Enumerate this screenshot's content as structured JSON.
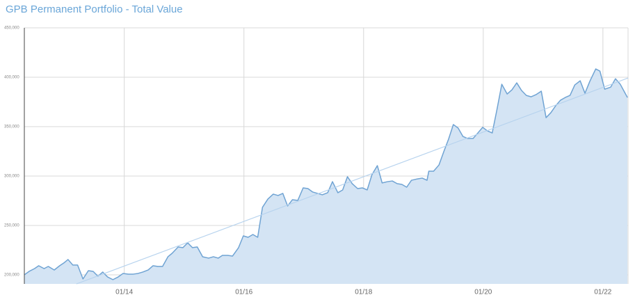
{
  "chart_data": {
    "type": "area",
    "title": "GPB Permanent Portfolio - Total Value",
    "x": [
      2012.33,
      2012.41,
      2012.5,
      2012.57,
      2012.66,
      2012.73,
      2012.83,
      2012.92,
      2012.99,
      2013.06,
      2013.14,
      2013.22,
      2013.31,
      2013.4,
      2013.48,
      2013.56,
      2013.64,
      2013.72,
      2013.81,
      2013.9,
      2013.98,
      2014.07,
      2014.15,
      2014.23,
      2014.31,
      2014.4,
      2014.48,
      2014.56,
      2014.64,
      2014.73,
      2014.8,
      2014.9,
      2014.98,
      2015.06,
      2015.14,
      2015.22,
      2015.31,
      2015.41,
      2015.49,
      2015.57,
      2015.64,
      2015.73,
      2015.81,
      2015.91,
      2015.99,
      2016.07,
      2016.15,
      2016.23,
      2016.31,
      2016.4,
      2016.49,
      2016.57,
      2016.65,
      2016.73,
      2016.81,
      2016.9,
      2016.99,
      2017.07,
      2017.15,
      2017.23,
      2017.31,
      2017.4,
      2017.48,
      2017.57,
      2017.65,
      2017.73,
      2017.81,
      2017.9,
      2017.98,
      2018.06,
      2018.14,
      2018.23,
      2018.31,
      2018.4,
      2018.48,
      2018.56,
      2018.64,
      2018.72,
      2018.8,
      2018.9,
      2018.98,
      2019.06,
      2019.09,
      2019.17,
      2019.26,
      2019.34,
      2019.42,
      2019.5,
      2019.58,
      2019.66,
      2019.74,
      2019.83,
      2019.91,
      2019.99,
      2020.07,
      2020.15,
      2020.23,
      2020.31,
      2020.4,
      2020.48,
      2020.56,
      2020.64,
      2020.72,
      2020.8,
      2020.88,
      2020.97,
      2021.05,
      2021.13,
      2021.21,
      2021.29,
      2021.37,
      2021.45,
      2021.53,
      2021.62,
      2021.7,
      2021.78,
      2021.88,
      2021.95,
      2022.03,
      2022.13,
      2022.21,
      2022.29,
      2022.41
    ],
    "series": [
      {
        "color": "#6fa3d3",
        "fill": "#d4e4f4",
        "values": [
          200000,
          203500,
          206300,
          209200,
          206300,
          208500,
          204900,
          209200,
          212000,
          215500,
          209900,
          209900,
          195800,
          204200,
          203500,
          198600,
          202800,
          197900,
          195100,
          197900,
          201400,
          200700,
          200700,
          201400,
          202800,
          204900,
          209200,
          208500,
          208500,
          218300,
          221800,
          228200,
          227500,
          232400,
          227500,
          228200,
          218300,
          216900,
          218300,
          216900,
          219700,
          219700,
          219000,
          227500,
          239400,
          238000,
          240800,
          238000,
          268300,
          276700,
          281700,
          280300,
          282400,
          269700,
          276000,
          275300,
          288000,
          287300,
          283800,
          282400,
          281000,
          283100,
          294300,
          283100,
          285900,
          299300,
          292300,
          287300,
          288000,
          285900,
          301400,
          310500,
          293000,
          294300,
          295000,
          292300,
          291500,
          288700,
          295700,
          297100,
          297900,
          295700,
          304900,
          304900,
          311200,
          324600,
          337300,
          352100,
          348600,
          340100,
          338000,
          338000,
          343600,
          349300,
          345700,
          343600,
          367600,
          392900,
          383000,
          387300,
          394300,
          386600,
          381600,
          380200,
          382300,
          385900,
          359100,
          364100,
          371100,
          376700,
          379500,
          381600,
          392200,
          396400,
          383800,
          395700,
          408400,
          406200,
          387900,
          390000,
          398500,
          392900,
          379500
        ]
      }
    ],
    "trend": {
      "color": "#b7d3ee",
      "x": [
        2013.2,
        2022.42
      ],
      "values": [
        190800,
        399200
      ]
    },
    "xlim": [
      2012.33,
      2022.42
    ],
    "xticks": [
      {
        "value": 2014,
        "label": "01/14"
      },
      {
        "value": 2016,
        "label": "01/16"
      },
      {
        "value": 2018,
        "label": "01/18"
      },
      {
        "value": 2020,
        "label": "01/20"
      },
      {
        "value": 2022,
        "label": "01/22"
      }
    ],
    "ylim": [
      190800,
      450000
    ],
    "yticks": [
      {
        "value": 200000,
        "label": "200,000"
      },
      {
        "value": 250000,
        "label": "250,000"
      },
      {
        "value": 300000,
        "label": "300,000"
      },
      {
        "value": 350000,
        "label": "350,000"
      },
      {
        "value": 400000,
        "label": "400,000"
      },
      {
        "value": 450000,
        "label": "450,000"
      }
    ],
    "grid": true
  }
}
